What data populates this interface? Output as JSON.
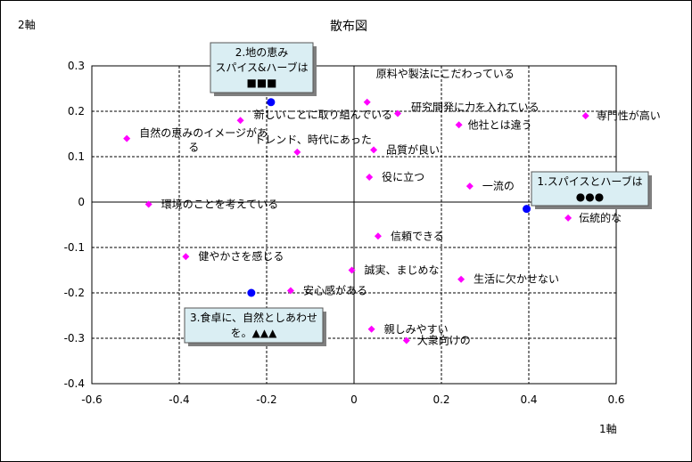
{
  "chart_data": {
    "type": "scatter",
    "title": "散布図",
    "xlabel": "1軸",
    "ylabel": "2軸",
    "xlim": [
      -0.6,
      0.6
    ],
    "ylim": [
      -0.4,
      0.3
    ],
    "xticks": [
      "-0.6",
      "-0.4",
      "-0.2",
      "0",
      "0.2",
      "0.4",
      "0.6"
    ],
    "yticks": [
      "0.3",
      "0.2",
      "0.1",
      "0",
      "-0.1",
      "-0.2",
      "-0.3",
      "-0.4"
    ],
    "grid": true,
    "series": [
      {
        "color": "#ff00ff",
        "marker": "diamond",
        "points": [
          {
            "x": 0.03,
            "y": 0.22,
            "label": "原料や製法にこだわっている"
          },
          {
            "x": 0.1,
            "y": 0.195,
            "label": "研究開発に力を入れている"
          },
          {
            "x": -0.26,
            "y": 0.18,
            "label": "新しいことに取り組んでいる"
          },
          {
            "x": 0.24,
            "y": 0.17,
            "label": "他社とは違う"
          },
          {
            "x": 0.53,
            "y": 0.19,
            "label": "専門性が高い"
          },
          {
            "x": -0.52,
            "y": 0.14,
            "label": "自然の恵みのイメージがある"
          },
          {
            "x": -0.13,
            "y": 0.11,
            "label": "トレンド、時代にあった"
          },
          {
            "x": 0.045,
            "y": 0.115,
            "label": "品質が良い"
          },
          {
            "x": 0.035,
            "y": 0.055,
            "label": "役に立つ"
          },
          {
            "x": 0.265,
            "y": 0.035,
            "label": "一流の"
          },
          {
            "x": -0.47,
            "y": -0.005,
            "label": "環境のことを考えている"
          },
          {
            "x": 0.49,
            "y": -0.035,
            "label": "伝統的な"
          },
          {
            "x": 0.055,
            "y": -0.075,
            "label": "信頼できる"
          },
          {
            "x": -0.385,
            "y": -0.12,
            "label": "健やかさを感じる"
          },
          {
            "x": -0.005,
            "y": -0.15,
            "label": "誠実、まじめな"
          },
          {
            "x": 0.245,
            "y": -0.17,
            "label": "生活に欠かせない"
          },
          {
            "x": -0.145,
            "y": -0.195,
            "label": "安心感がある"
          },
          {
            "x": 0.04,
            "y": -0.28,
            "label": "親しみやすい"
          },
          {
            "x": 0.12,
            "y": -0.305,
            "label": "大衆向けの"
          }
        ]
      },
      {
        "color": "#0000ff",
        "marker": "circle",
        "points": [
          {
            "x": -0.19,
            "y": 0.22
          },
          {
            "x": 0.395,
            "y": -0.015
          },
          {
            "x": -0.235,
            "y": -0.2
          }
        ]
      }
    ],
    "callouts": [
      {
        "lines": [
          "2.地の恵み",
          "スパイス&ハーブは",
          "■■■"
        ]
      },
      {
        "lines": [
          "1.スパイスとハーブは",
          "●●●"
        ]
      },
      {
        "lines": [
          "3.食卓に、自然としあわせ",
          "を。▲▲▲"
        ]
      }
    ]
  }
}
